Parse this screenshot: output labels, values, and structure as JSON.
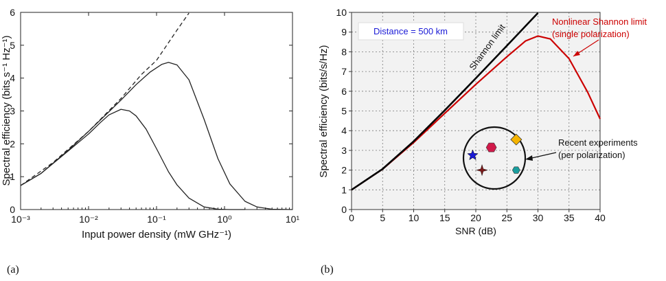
{
  "panel_labels": {
    "a": "(a)",
    "b": "(b)"
  },
  "chart_data": [
    {
      "type": "line",
      "panel": "(a)",
      "xscale": "log",
      "xlim": [
        0.001,
        10
      ],
      "ylim": [
        0,
        6
      ],
      "xlabel": "Input power density (mW GHz⁻¹)",
      "ylabel": "Spectral efficiency (bits s⁻¹ Hz⁻¹)",
      "xticks": [
        0.001,
        0.01,
        0.1,
        1,
        10
      ],
      "xtick_labels": [
        "10⁻³",
        "10⁻²",
        "10⁻¹",
        "10⁰",
        "10¹"
      ],
      "yticks": [
        0,
        1,
        2,
        3,
        4,
        5,
        6
      ],
      "ytick_labels": [
        "0",
        "1",
        "2",
        "3",
        "4",
        "5",
        "6"
      ],
      "grid": false,
      "series": [
        {
          "style": "dashed",
          "x": [
            0.001,
            0.003,
            0.01,
            0.03,
            0.06,
            0.1,
            0.2,
            0.3
          ],
          "y": [
            0.73,
            1.43,
            2.38,
            3.38,
            4.11,
            4.54,
            5.46,
            5.98
          ]
        },
        {
          "style": "solid",
          "x": [
            0.001,
            0.002,
            0.005,
            0.01,
            0.02,
            0.03,
            0.05,
            0.08,
            0.12,
            0.15,
            0.2,
            0.3,
            0.5,
            0.8,
            1.2,
            2,
            3,
            5,
            10
          ],
          "y": [
            0.73,
            1.1,
            1.8,
            2.38,
            2.98,
            3.33,
            3.8,
            4.18,
            4.42,
            4.48,
            4.4,
            3.95,
            2.75,
            1.55,
            0.78,
            0.25,
            0.08,
            0.01,
            0
          ]
        },
        {
          "style": "solid",
          "x": [
            0.001,
            0.002,
            0.005,
            0.01,
            0.015,
            0.02,
            0.03,
            0.04,
            0.05,
            0.07,
            0.1,
            0.15,
            0.2,
            0.3,
            0.5,
            0.8,
            1.2,
            2
          ],
          "y": [
            0.73,
            1.1,
            1.78,
            2.3,
            2.65,
            2.88,
            3.05,
            3.0,
            2.85,
            2.45,
            1.85,
            1.15,
            0.75,
            0.35,
            0.08,
            0.01,
            0,
            0
          ]
        }
      ]
    },
    {
      "type": "line",
      "panel": "(b)",
      "xlim": [
        0,
        40
      ],
      "ylim": [
        0,
        10
      ],
      "xlabel": "SNR (dB)",
      "ylabel": "Spectral efficiency (bits/s/Hz)",
      "xticks": [
        0,
        5,
        10,
        15,
        20,
        25,
        30,
        35,
        40
      ],
      "yticks": [
        0,
        1,
        2,
        3,
        4,
        5,
        6,
        7,
        8,
        9,
        10
      ],
      "grid": true,
      "series": [
        {
          "name": "Shannon limit",
          "color": "#000000",
          "x": [
            0,
            5,
            10,
            15,
            20,
            25,
            30
          ],
          "y": [
            1.0,
            2.06,
            3.46,
            5.03,
            6.66,
            8.31,
            9.97
          ]
        },
        {
          "name": "Nonlinear Shannon limit\n(single polarization)",
          "color": "#cc0000",
          "x": [
            0,
            5,
            10,
            15,
            20,
            25,
            28,
            30,
            32,
            35,
            38,
            40
          ],
          "y": [
            1.0,
            2.05,
            3.4,
            4.88,
            6.35,
            7.75,
            8.55,
            8.8,
            8.65,
            7.65,
            5.95,
            4.6
          ]
        }
      ],
      "markers": [
        {
          "shape": "star",
          "color": "#1a1ad6",
          "x": 19.5,
          "y": 2.75
        },
        {
          "shape": "hexagon",
          "color": "#d11a4a",
          "x": 22.5,
          "y": 3.15
        },
        {
          "shape": "diamond",
          "color": "#f5b400",
          "x": 26.5,
          "y": 3.55
        },
        {
          "shape": "sparkle",
          "color": "#7a1a1a",
          "x": 21,
          "y": 2.0
        },
        {
          "shape": "hexagon",
          "color": "#1a9e9e",
          "x": 26.5,
          "y": 2.0
        }
      ],
      "annotations": {
        "distance_box": "Distance = 500 km",
        "shannon_label": "Shannon limit",
        "nonlinear_label_line1": "Nonlinear Shannon limit",
        "nonlinear_label_line2": "(single polarization)",
        "experiments_line1": "Recent experiments",
        "experiments_line2": "(per polarization)"
      },
      "colors": {
        "background": "#f2f2f2",
        "shannon": "#000000",
        "nonlinear": "#cc0000",
        "annotation_red": "#cc0000",
        "distance_text": "#1a1ad6"
      }
    }
  ]
}
